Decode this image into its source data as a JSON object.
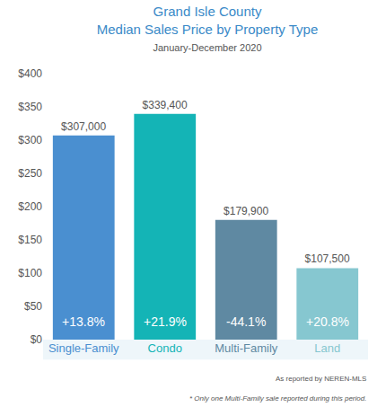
{
  "chart_data": {
    "type": "bar",
    "title": "Grand Isle County",
    "subtitle": "Median Sales Price by Property Type",
    "period": "January-December 2020",
    "categories": [
      "Single-Family",
      "Condo",
      "Multi-Family",
      "Land"
    ],
    "values": [
      307,
      339.4,
      179.9,
      107.5
    ],
    "value_labels": [
      "$307,000",
      "$339,400",
      "$179,900",
      "$107,500"
    ],
    "colors": [
      "#4a8fd0",
      "#14b4b6",
      "#5f89a2",
      "#86c7d0"
    ],
    "data_labels": true,
    "annotations": [
      {
        "x": "Single-Family",
        "text": "+13.8%"
      },
      {
        "x": "Condo",
        "text": "+21.9%"
      },
      {
        "x": "Multi-Family",
        "text": "-44.1%"
      },
      {
        "x": "Land",
        "text": "+20.8%"
      }
    ],
    "source": "As reported by NEREN-MLS",
    "footnote": "* Only one Multi-Family sale reported during this period.",
    "ylim": [
      0,
      400
    ],
    "yticks": [
      {
        "value": 0,
        "label": "$0"
      },
      {
        "value": 50,
        "label": "$50"
      },
      {
        "value": 100,
        "label": "$100"
      },
      {
        "value": 150,
        "label": "$150"
      },
      {
        "value": 200,
        "label": "$200"
      },
      {
        "value": 250,
        "label": "$250"
      },
      {
        "value": 300,
        "label": "$300"
      },
      {
        "value": 350,
        "label": "$350"
      },
      {
        "value": 400,
        "label": "$400"
      }
    ],
    "grid": false
  }
}
